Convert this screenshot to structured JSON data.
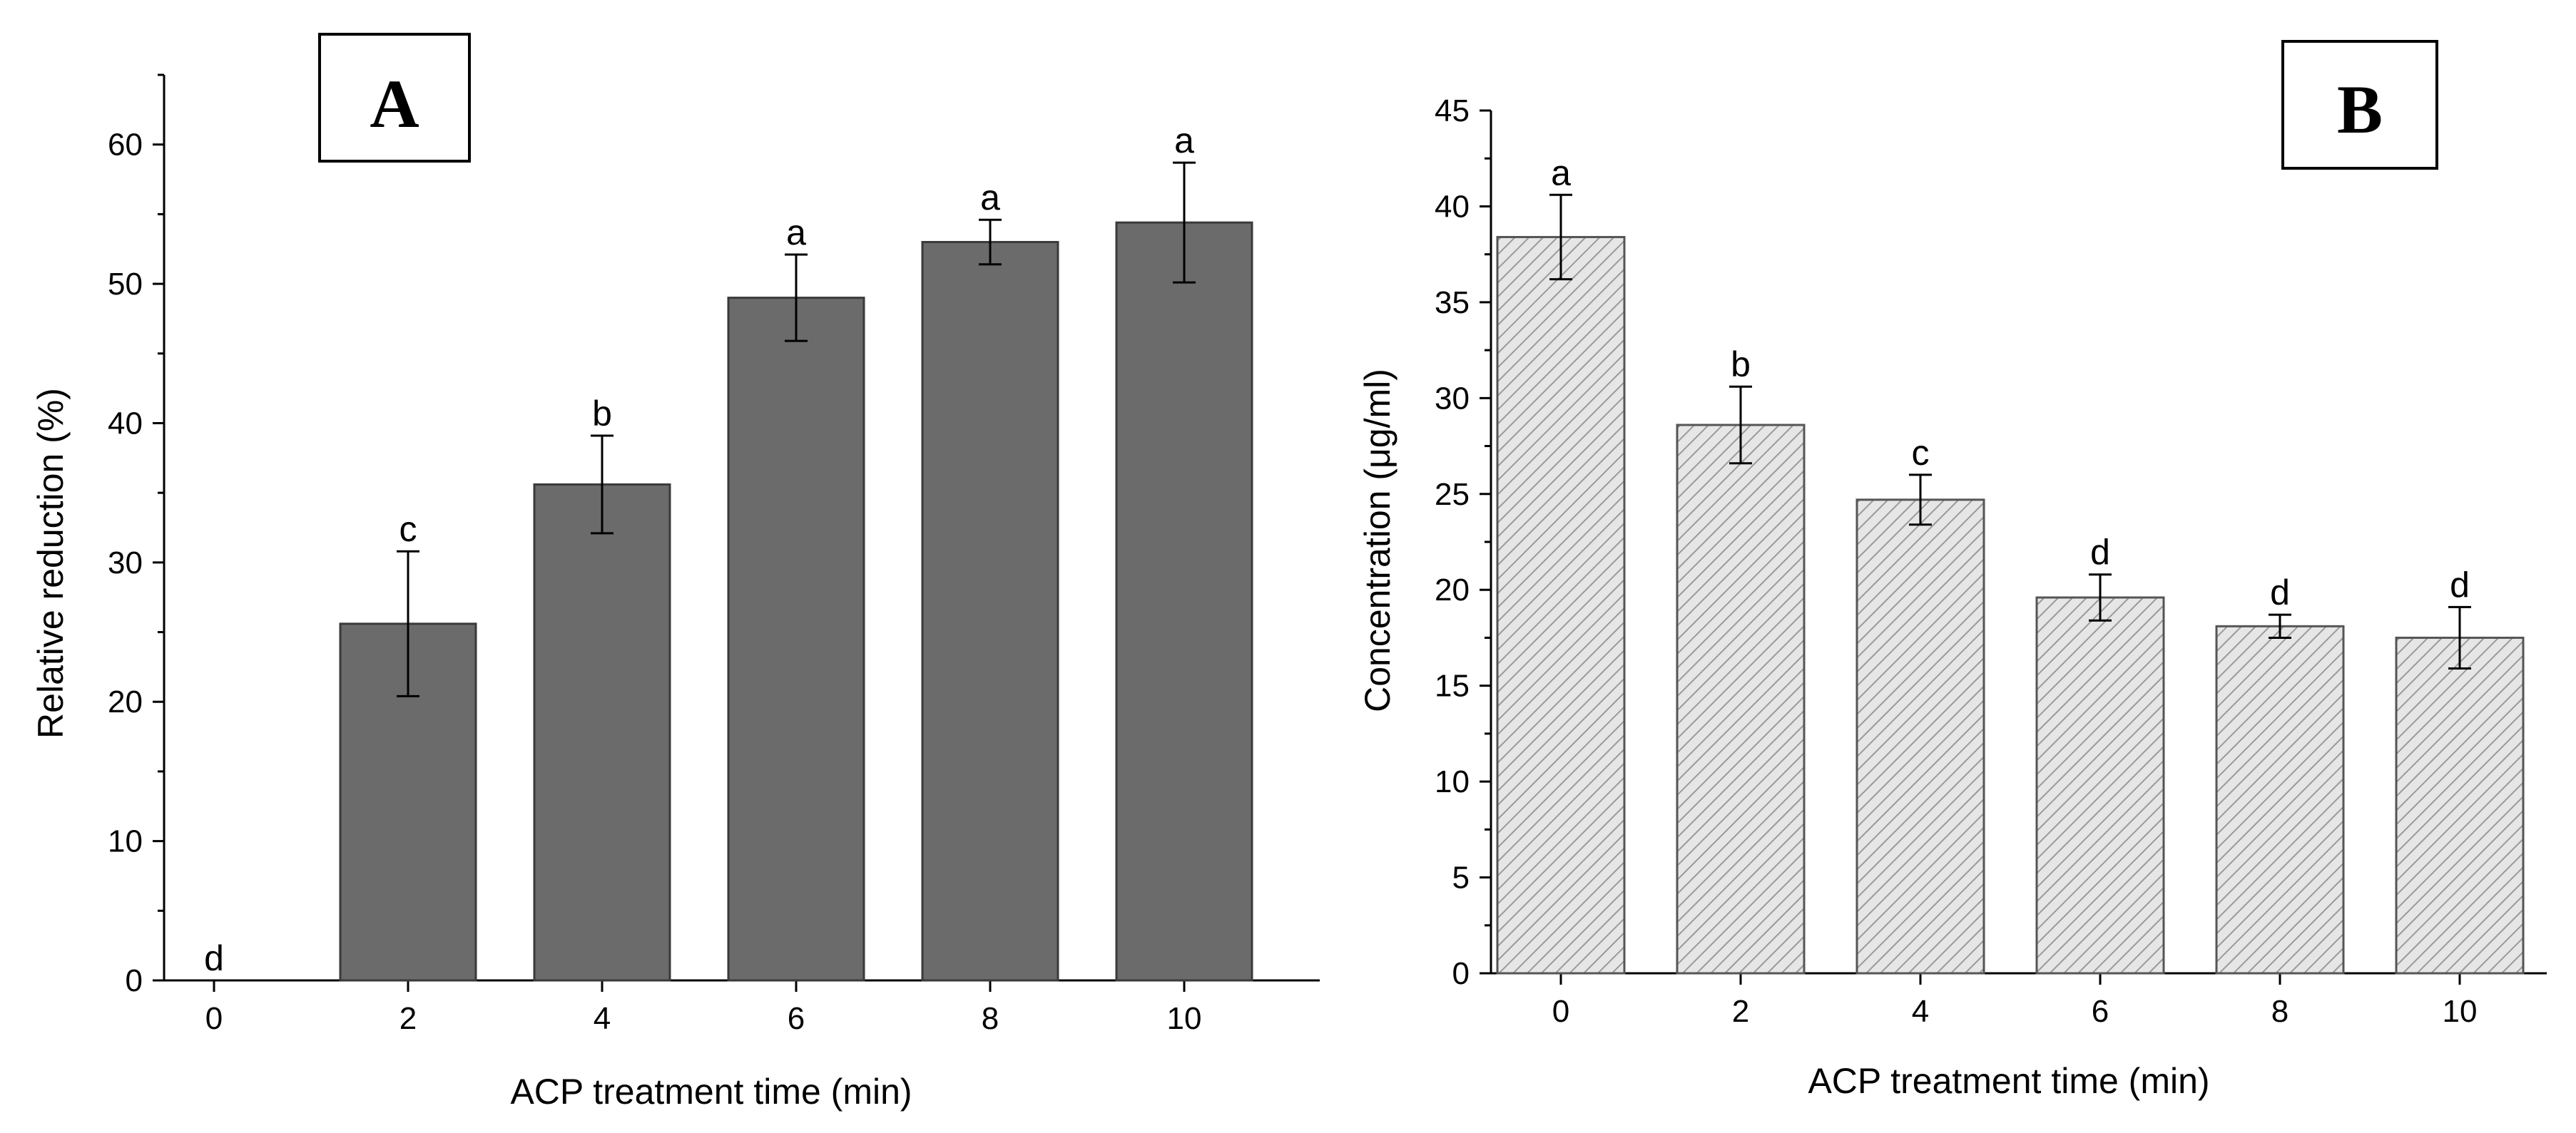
{
  "chart_data": [
    {
      "type": "bar",
      "panel_label": "A",
      "categories": [
        "0",
        "2",
        "4",
        "6",
        "8",
        "10"
      ],
      "values": [
        0,
        25.6,
        35.6,
        49.0,
        53.0,
        54.4
      ],
      "errors": [
        0,
        5.2,
        3.5,
        3.1,
        1.6,
        4.3
      ],
      "significance": [
        "d",
        "c",
        "b",
        "a",
        "a",
        "a"
      ],
      "xlabel": "ACP treatment time (min)",
      "ylabel": "Relative reduction (%)",
      "ylim": [
        0,
        65
      ],
      "yticks": [
        0,
        10,
        20,
        30,
        40,
        50,
        60
      ],
      "bar_color": "#6b6b6b",
      "bar_fill": "solid",
      "grid": false
    },
    {
      "type": "bar",
      "panel_label": "B",
      "categories": [
        "0",
        "2",
        "4",
        "6",
        "8",
        "10"
      ],
      "values": [
        38.4,
        28.6,
        24.7,
        19.6,
        18.1,
        17.5
      ],
      "errors": [
        2.2,
        2.0,
        1.3,
        1.2,
        0.6,
        1.6
      ],
      "significance": [
        "a",
        "b",
        "c",
        "d",
        "d",
        "d"
      ],
      "xlabel": "ACP treatment time (min)",
      "ylabel": "Concentration (μg/ml)",
      "ylim": [
        0,
        45
      ],
      "yticks": [
        0,
        5,
        10,
        15,
        20,
        25,
        30,
        35,
        40,
        45
      ],
      "bar_color": "#e3e3e3",
      "bar_fill": "hatched",
      "grid": false
    }
  ]
}
